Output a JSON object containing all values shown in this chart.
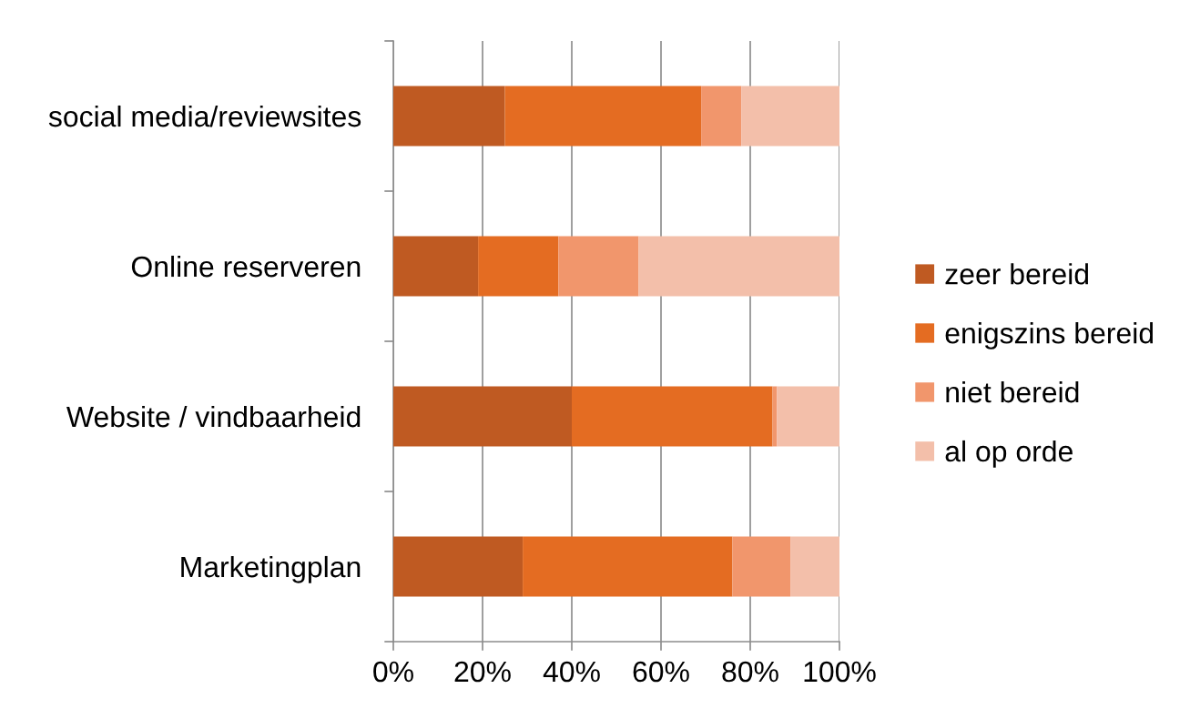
{
  "chart_data": {
    "type": "bar",
    "orientation": "horizontal",
    "stacked": true,
    "categories": [
      "social media/reviewsites",
      "Online reserveren",
      "Website / vindbaarheid",
      "Marketingplan"
    ],
    "series": [
      {
        "name": "zeer bereid",
        "color": "#bf5a22",
        "values": [
          25,
          19,
          40,
          29
        ]
      },
      {
        "name": "enigszins bereid",
        "color": "#e46c22",
        "values": [
          44,
          18,
          45,
          47
        ]
      },
      {
        "name": "niet bereid",
        "color": "#f1966c",
        "values": [
          9,
          18,
          1,
          13
        ]
      },
      {
        "name": "al op orde",
        "color": "#f3bfaa",
        "values": [
          22,
          45,
          14,
          11
        ]
      }
    ],
    "xlim": [
      0,
      100
    ],
    "xticks": [
      {
        "value": 0,
        "label": "0%"
      },
      {
        "value": 20,
        "label": "20%"
      },
      {
        "value": 40,
        "label": "40%"
      },
      {
        "value": 60,
        "label": "60%"
      },
      {
        "value": 80,
        "label": "80%"
      },
      {
        "value": 100,
        "label": "100%"
      }
    ],
    "grid": "x",
    "legend": "right"
  }
}
